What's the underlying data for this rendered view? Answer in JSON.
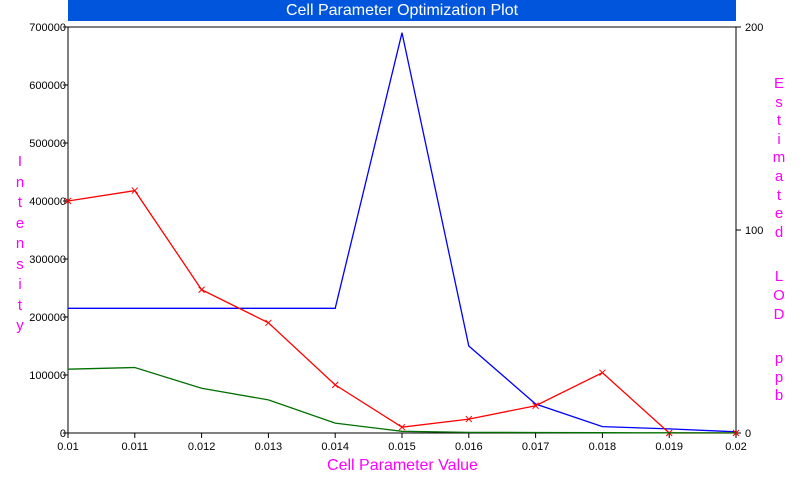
{
  "chart_data": {
    "type": "line",
    "title": "Cell Parameter Optimization Plot",
    "xlabel": "Cell Parameter Value",
    "ylabel_left": "Intensity",
    "ylabel_right": "Estimated LOD ppb",
    "x": [
      0.01,
      0.011,
      0.012,
      0.013,
      0.014,
      0.015,
      0.016,
      0.017,
      0.018,
      0.019,
      0.02
    ],
    "x_tick_labels": [
      "0.01",
      "0.011",
      "0.012",
      "0.013",
      "0.014",
      "0.015",
      "0.016",
      "0.017",
      "0.018",
      "0.019",
      "0.02"
    ],
    "xlim": [
      0.01,
      0.02
    ],
    "ylim_left": [
      0,
      700000
    ],
    "y_left_tick_labels": [
      "0",
      "100000",
      "200000",
      "300000",
      "400000",
      "500000",
      "600000",
      "700000"
    ],
    "ylim_right": [
      0,
      200
    ],
    "y_right_tick_labels": [
      "0",
      "100",
      "200"
    ],
    "grid": false,
    "series": [
      {
        "color": "#0000ff",
        "axis": "left",
        "marker": "none",
        "values": [
          215000,
          215000,
          215000,
          215000,
          215000,
          690000,
          150000,
          50000,
          11000,
          7000,
          2000
        ]
      },
      {
        "color": "#ff0000",
        "axis": "left",
        "marker": "x",
        "values": [
          400000,
          418000,
          247000,
          190000,
          83000,
          10000,
          24000,
          47000,
          104000,
          0,
          0
        ]
      },
      {
        "color": "#007000",
        "axis": "left",
        "marker": "none",
        "values": [
          110000,
          113000,
          77000,
          57000,
          17000,
          3000,
          1000,
          800,
          500,
          300,
          200
        ]
      }
    ],
    "colors": {
      "title_bar": "#0055dd",
      "title_text": "#ffffff",
      "axis_labels": "#ff00ff",
      "frame": "#000000"
    }
  }
}
